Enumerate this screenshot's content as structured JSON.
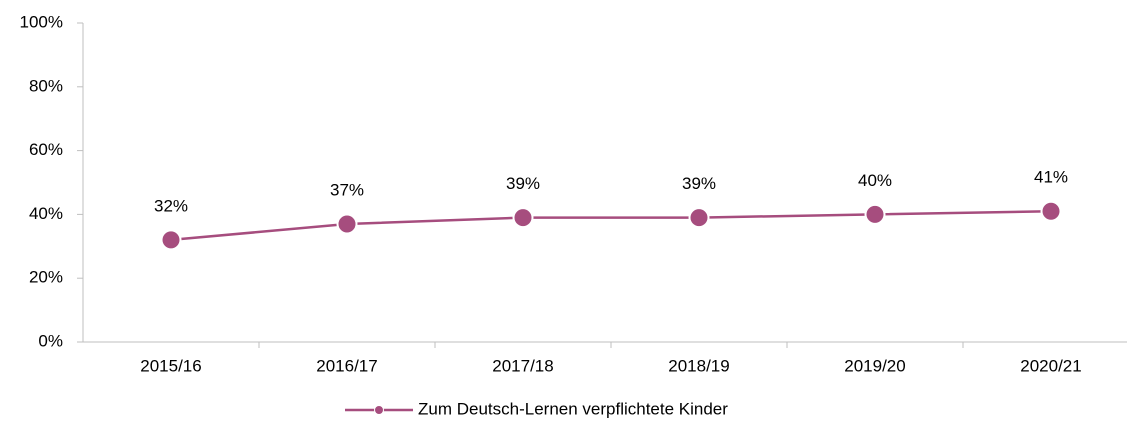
{
  "chart_data": {
    "type": "line",
    "categories": [
      "2015/16",
      "2016/17",
      "2017/18",
      "2018/19",
      "2019/20",
      "2020/21"
    ],
    "series": [
      {
        "name": "Zum Deutsch-Lernen verpflichtete Kinder",
        "color": "#a64d7e",
        "values": [
          32,
          37,
          39,
          39,
          40,
          41
        ],
        "value_labels": [
          "32%",
          "37%",
          "39%",
          "39%",
          "40%",
          "41%"
        ]
      }
    ],
    "ylim": [
      0,
      100
    ],
    "yticks": [
      {
        "value": 0,
        "label": "0%"
      },
      {
        "value": 20,
        "label": "20%"
      },
      {
        "value": 40,
        "label": "40%"
      },
      {
        "value": 60,
        "label": "60%"
      },
      {
        "value": 80,
        "label": "80%"
      },
      {
        "value": 100,
        "label": "100%"
      }
    ],
    "grid": false,
    "legend": "bottom"
  }
}
